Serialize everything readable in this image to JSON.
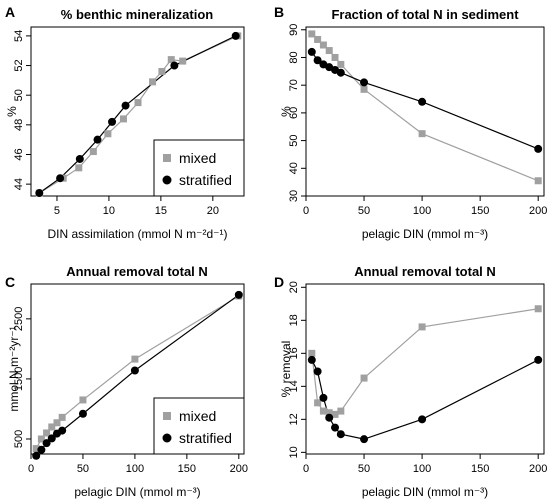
{
  "colors": {
    "mixed": "#a0a0a0",
    "stratified": "#000000"
  },
  "chart_data": [
    {
      "panel": "A",
      "type": "scatter",
      "title": "% benthic mineralization",
      "xlabel": "DIN assimilation (mmol N m⁻²d⁻¹)",
      "ylabel": "%",
      "xlim": [
        2.5,
        23
      ],
      "ylim": [
        43.2,
        54.6
      ],
      "xticks": [
        5,
        10,
        15,
        20
      ],
      "yticks": [
        44,
        46,
        48,
        50,
        52,
        54
      ],
      "legend": {
        "position": "bottom-right",
        "entries": [
          "mixed",
          "stratified"
        ]
      },
      "series": [
        {
          "name": "mixed",
          "marker": "square",
          "x": [
            3.3,
            5.6,
            7.1,
            8.5,
            9.9,
            11.4,
            12.8,
            14.2,
            15.1,
            16.0,
            17.1,
            22.4
          ],
          "y": [
            43.4,
            44.4,
            45.1,
            46.2,
            47.4,
            48.4,
            49.5,
            50.9,
            51.6,
            52.4,
            52.3,
            54.0
          ]
        },
        {
          "name": "stratified",
          "marker": "circle",
          "x": [
            3.3,
            5.3,
            7.2,
            8.9,
            10.3,
            11.6,
            16.3,
            22.2
          ],
          "y": [
            43.4,
            44.4,
            45.7,
            47.0,
            48.2,
            49.3,
            52.0,
            54.0
          ]
        }
      ]
    },
    {
      "panel": "B",
      "type": "line",
      "title": "Fraction of total N in sediment",
      "xlabel": "pelagic DIN (mmol m⁻³)",
      "ylabel": "%",
      "xlim": [
        0,
        205
      ],
      "ylim": [
        30,
        91
      ],
      "xticks": [
        0,
        50,
        100,
        150,
        200
      ],
      "yticks": [
        30,
        40,
        50,
        60,
        70,
        80,
        90
      ],
      "series": [
        {
          "name": "mixed",
          "marker": "square",
          "x": [
            5,
            10,
            15,
            20,
            25,
            30,
            50,
            100,
            200
          ],
          "y": [
            88.5,
            86.5,
            84.5,
            82.5,
            80,
            77.5,
            68.5,
            52.5,
            35.5
          ]
        },
        {
          "name": "stratified",
          "marker": "circle",
          "x": [
            5,
            10,
            15,
            20,
            25,
            30,
            50,
            100,
            200
          ],
          "y": [
            82,
            79,
            77.5,
            76.5,
            75.5,
            74.5,
            71,
            64,
            47
          ]
        }
      ]
    },
    {
      "panel": "C",
      "type": "line",
      "title": "Annual removal total N",
      "xlabel": "pelagic DIN (mmol m⁻³)",
      "ylabel": "mmol N m⁻²yr⁻¹",
      "xlim": [
        0,
        205
      ],
      "ylim": [
        250,
        3080
      ],
      "xticks": [
        0,
        50,
        100,
        150,
        200
      ],
      "yticks": [
        500,
        1500,
        2500
      ],
      "legend": {
        "position": "bottom-right",
        "entries": [
          "mixed",
          "stratified"
        ]
      },
      "series": [
        {
          "name": "mixed",
          "marker": "square",
          "x": [
            5,
            10,
            15,
            20,
            25,
            30,
            50,
            100,
            200
          ],
          "y": [
            340,
            500,
            600,
            700,
            770,
            860,
            1150,
            1830,
            2880
          ]
        },
        {
          "name": "stratified",
          "marker": "circle",
          "x": [
            5,
            10,
            15,
            20,
            25,
            30,
            50,
            100,
            200
          ],
          "y": [
            220,
            320,
            430,
            510,
            590,
            640,
            920,
            1640,
            2900
          ]
        }
      ]
    },
    {
      "panel": "D",
      "type": "line",
      "title": "Annual removal total N",
      "xlabel": "pelagic DIN (mmol m⁻³)",
      "ylabel": "% removal",
      "xlim": [
        0,
        205
      ],
      "ylim": [
        9.9,
        20.2
      ],
      "xticks": [
        0,
        50,
        100,
        150,
        200
      ],
      "yticks": [
        10,
        12,
        14,
        16,
        18,
        20
      ],
      "series": [
        {
          "name": "mixed",
          "marker": "square",
          "x": [
            5,
            10,
            15,
            20,
            25,
            30,
            50,
            100,
            200
          ],
          "y": [
            16,
            13,
            12.5,
            12.4,
            12.3,
            12.5,
            14.5,
            17.6,
            18.7
          ]
        },
        {
          "name": "stratified",
          "marker": "circle",
          "x": [
            5,
            10,
            15,
            20,
            25,
            30,
            50,
            100,
            200
          ],
          "y": [
            15.6,
            14.9,
            13.3,
            12.1,
            11.5,
            11.1,
            10.8,
            12,
            15.6
          ]
        }
      ]
    }
  ]
}
